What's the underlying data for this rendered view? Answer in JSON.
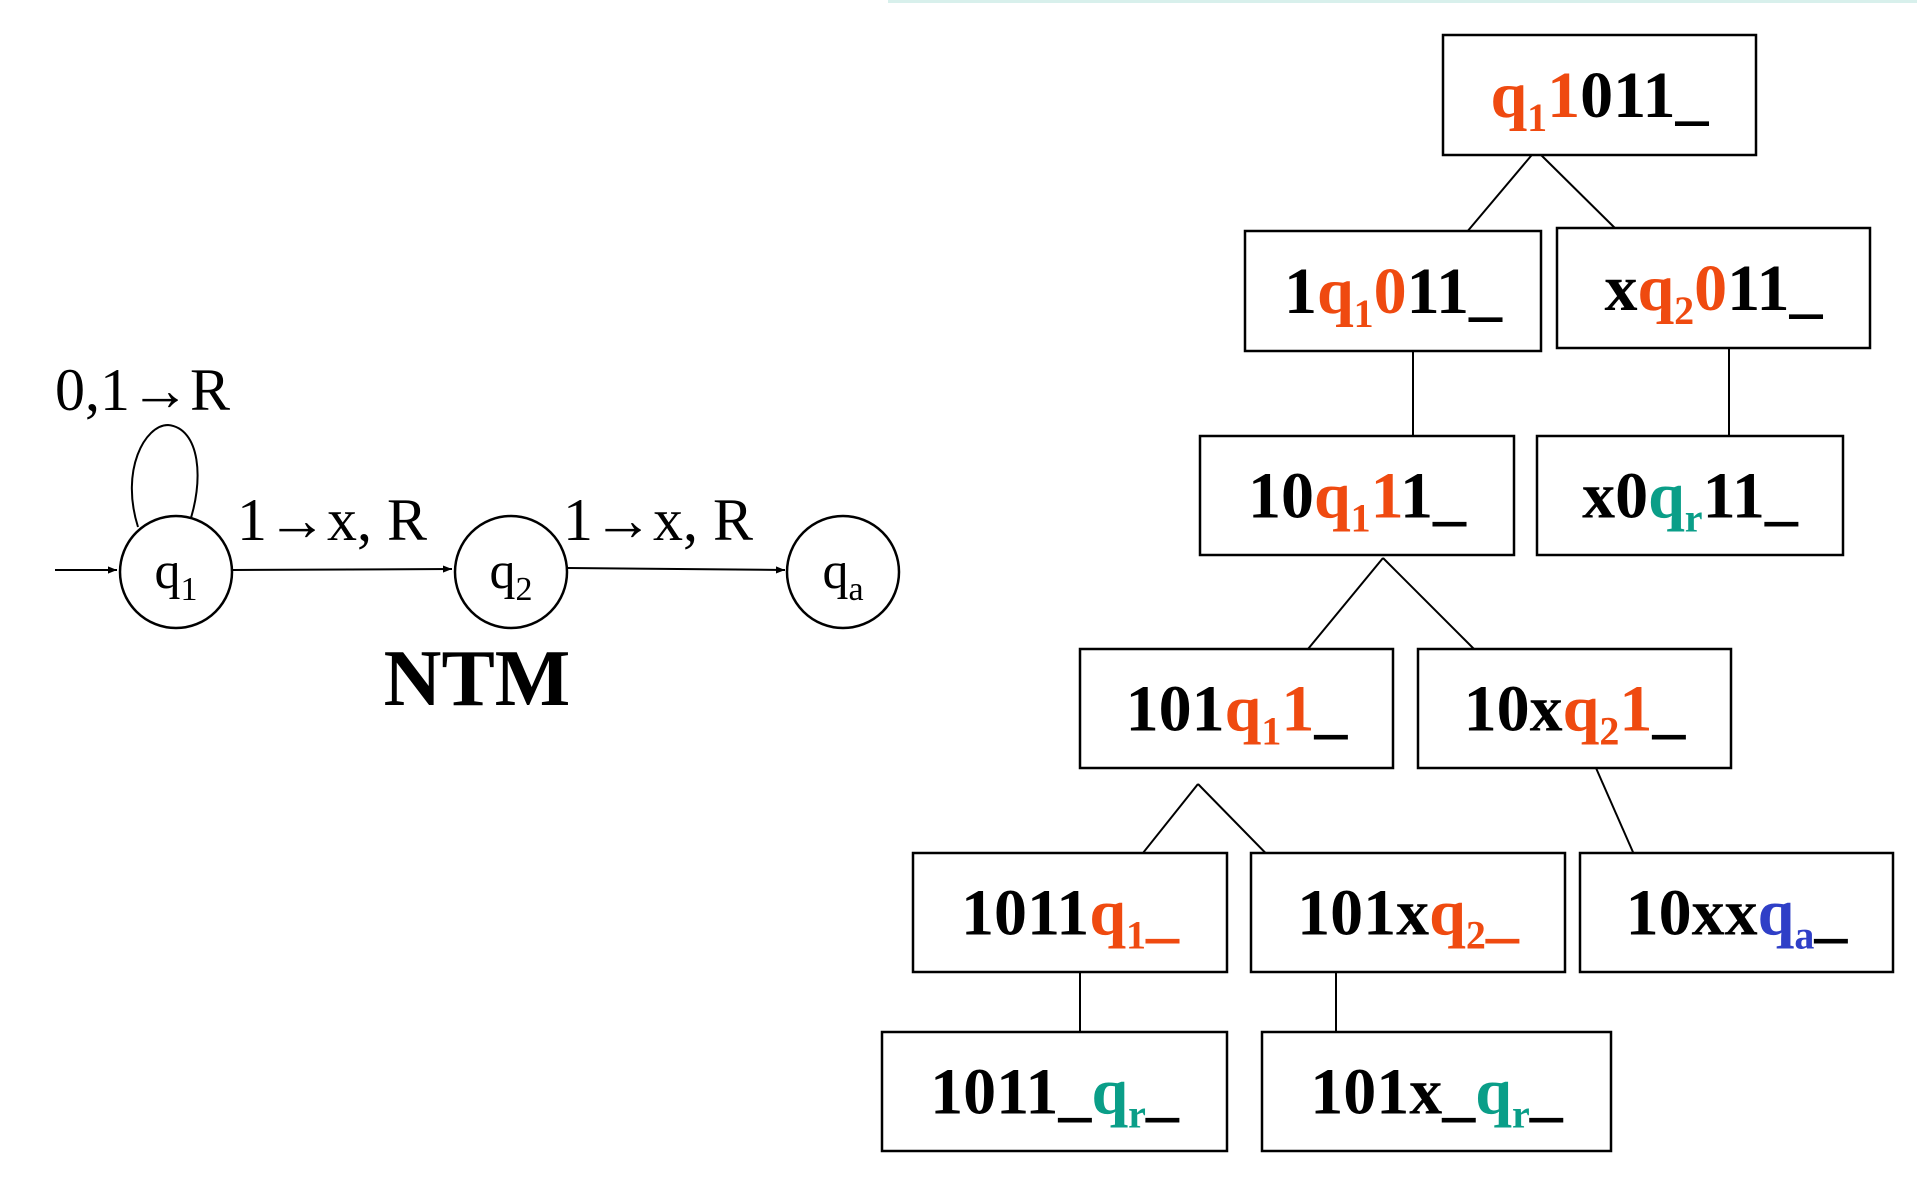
{
  "colors": {
    "ink": "#000000",
    "state": "#ef4a10",
    "reject": "#0a9e88",
    "accept": "#2f3fc7",
    "accent_rule": "#d8f0ec"
  },
  "ntm": {
    "title": "NTM",
    "states": [
      {
        "id": "q1",
        "base": "q",
        "sub": "1",
        "start": true
      },
      {
        "id": "q2",
        "base": "q",
        "sub": "2",
        "start": false
      },
      {
        "id": "qa",
        "base": "q",
        "sub": "a",
        "start": false
      }
    ],
    "transitions": [
      {
        "from": "q1",
        "to": "q1",
        "label": "0,1→R"
      },
      {
        "from": "q1",
        "to": "q2",
        "label": "1→x, R"
      },
      {
        "from": "q2",
        "to": "qa",
        "label": "1→x, R"
      }
    ]
  },
  "tree": {
    "nodes": [
      {
        "id": "n1",
        "parent": null,
        "segments": [
          {
            "t": "q",
            "c": "state"
          },
          {
            "t": "1",
            "c": "state",
            "sub": true
          },
          {
            "t": "1",
            "c": "state"
          },
          {
            "t": "011_",
            "c": "ink"
          }
        ]
      },
      {
        "id": "n2",
        "parent": "n1",
        "segments": [
          {
            "t": "1",
            "c": "ink"
          },
          {
            "t": "q",
            "c": "state"
          },
          {
            "t": "1",
            "c": "state",
            "sub": true
          },
          {
            "t": "0",
            "c": "state"
          },
          {
            "t": "11_",
            "c": "ink"
          }
        ]
      },
      {
        "id": "n3",
        "parent": "n1",
        "segments": [
          {
            "t": "x",
            "c": "ink"
          },
          {
            "t": "q",
            "c": "state"
          },
          {
            "t": "2",
            "c": "state",
            "sub": true
          },
          {
            "t": "0",
            "c": "state"
          },
          {
            "t": "11_",
            "c": "ink"
          }
        ]
      },
      {
        "id": "n4",
        "parent": "n2",
        "segments": [
          {
            "t": "10",
            "c": "ink"
          },
          {
            "t": "q",
            "c": "state"
          },
          {
            "t": "1",
            "c": "state",
            "sub": true
          },
          {
            "t": "1",
            "c": "state"
          },
          {
            "t": "1_",
            "c": "ink"
          }
        ]
      },
      {
        "id": "n5",
        "parent": "n3",
        "segments": [
          {
            "t": "x0",
            "c": "ink"
          },
          {
            "t": "q",
            "c": "reject"
          },
          {
            "t": "r",
            "c": "reject",
            "sub": true
          },
          {
            "t": "11_",
            "c": "ink"
          }
        ]
      },
      {
        "id": "n6",
        "parent": "n4",
        "segments": [
          {
            "t": "101",
            "c": "ink"
          },
          {
            "t": "q",
            "c": "state"
          },
          {
            "t": "1",
            "c": "state",
            "sub": true
          },
          {
            "t": "1",
            "c": "state"
          },
          {
            "t": "_",
            "c": "ink"
          }
        ]
      },
      {
        "id": "n7",
        "parent": "n4",
        "segments": [
          {
            "t": "10x",
            "c": "ink"
          },
          {
            "t": "q",
            "c": "state"
          },
          {
            "t": "2",
            "c": "state",
            "sub": true
          },
          {
            "t": "1",
            "c": "state"
          },
          {
            "t": "_",
            "c": "ink"
          }
        ]
      },
      {
        "id": "n8",
        "parent": "n6",
        "segments": [
          {
            "t": "1011",
            "c": "ink"
          },
          {
            "t": "q",
            "c": "state"
          },
          {
            "t": "1",
            "c": "state",
            "sub": true
          },
          {
            "t": "_",
            "c": "state"
          }
        ]
      },
      {
        "id": "n9",
        "parent": "n6",
        "segments": [
          {
            "t": "101x",
            "c": "ink"
          },
          {
            "t": "q",
            "c": "state"
          },
          {
            "t": "2",
            "c": "state",
            "sub": true
          },
          {
            "t": "_",
            "c": "state"
          }
        ]
      },
      {
        "id": "n10",
        "parent": "n7",
        "segments": [
          {
            "t": "10xx",
            "c": "ink"
          },
          {
            "t": "q",
            "c": "accept"
          },
          {
            "t": "a",
            "c": "accept",
            "sub": true
          },
          {
            "t": "_",
            "c": "ink"
          }
        ]
      },
      {
        "id": "n11",
        "parent": "n8",
        "segments": [
          {
            "t": "1011_",
            "c": "ink"
          },
          {
            "t": "q",
            "c": "reject"
          },
          {
            "t": "r",
            "c": "reject",
            "sub": true
          },
          {
            "t": "_",
            "c": "ink"
          }
        ]
      },
      {
        "id": "n12",
        "parent": "n9",
        "segments": [
          {
            "t": "101x_",
            "c": "ink"
          },
          {
            "t": "q",
            "c": "reject"
          },
          {
            "t": "r",
            "c": "reject",
            "sub": true
          },
          {
            "t": "_",
            "c": "ink"
          }
        ]
      }
    ]
  }
}
